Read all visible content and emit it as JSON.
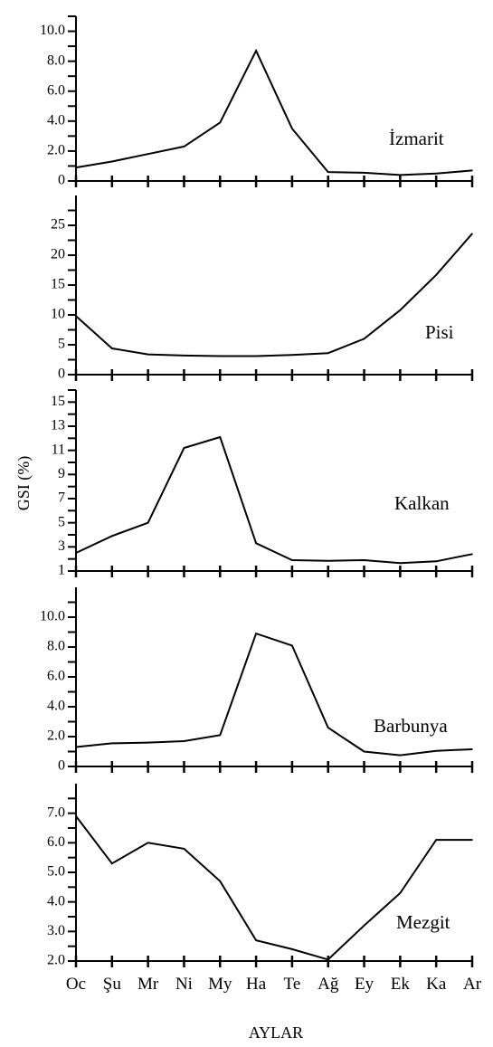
{
  "chart_data": {
    "type": "line",
    "ylabel": "GSI (%)",
    "xlabel": "AYLAR",
    "categories": [
      "Oc",
      "Şu",
      "Mr",
      "Ni",
      "My",
      "Ha",
      "Te",
      "Ağ",
      "Ey",
      "Ek",
      "Ka",
      "Ar"
    ],
    "panels": [
      {
        "name": "İzmarit",
        "ylim": [
          0,
          11
        ],
        "ticks": [
          0,
          2,
          4,
          6,
          8,
          10
        ],
        "tick_labels": [
          "0",
          "2.0",
          "4.0",
          "6.0",
          "8.0",
          "10.0"
        ],
        "values": [
          0.9,
          1.3,
          1.8,
          2.3,
          3.9,
          8.7,
          3.5,
          0.6,
          0.55,
          0.4,
          0.5,
          0.7
        ]
      },
      {
        "name": "Pisi",
        "ylim": [
          0,
          30
        ],
        "ticks": [
          0,
          5,
          10,
          15,
          20,
          25
        ],
        "tick_labels": [
          "0",
          "5",
          "10",
          "15",
          "20",
          "25"
        ],
        "values": [
          9.8,
          4.4,
          3.4,
          3.2,
          3.1,
          3.1,
          3.3,
          3.6,
          6.0,
          10.8,
          16.7,
          23.6
        ]
      },
      {
        "name": "Kalkan",
        "ylim": [
          1,
          16
        ],
        "ticks": [
          1,
          3,
          5,
          7,
          9,
          11,
          13,
          15
        ],
        "tick_labels": [
          "1",
          "3",
          "5",
          "7",
          "9",
          "11",
          "13",
          "15"
        ],
        "values": [
          2.5,
          3.9,
          5.0,
          11.2,
          12.1,
          3.3,
          1.9,
          1.85,
          1.9,
          1.65,
          1.8,
          2.4
        ]
      },
      {
        "name": "Barbunya",
        "ylim": [
          0,
          12
        ],
        "ticks": [
          0,
          2,
          4,
          6,
          8,
          10
        ],
        "tick_labels": [
          "0",
          "2.0",
          "4.0",
          "6.0",
          "8.0",
          "10.0"
        ],
        "values": [
          1.3,
          1.55,
          1.6,
          1.7,
          2.1,
          8.9,
          8.1,
          2.6,
          1.0,
          0.75,
          1.05,
          1.15
        ]
      },
      {
        "name": "Mezgit",
        "ylim": [
          2,
          8
        ],
        "ticks": [
          2,
          3,
          4,
          5,
          6,
          7
        ],
        "tick_labels": [
          "2.0",
          "3.0",
          "4.0",
          "5.0",
          "6.0",
          "7.0"
        ],
        "values": [
          6.9,
          5.3,
          6.0,
          5.8,
          4.7,
          2.7,
          2.4,
          2.05,
          3.2,
          4.3,
          6.1,
          6.1
        ]
      }
    ]
  }
}
